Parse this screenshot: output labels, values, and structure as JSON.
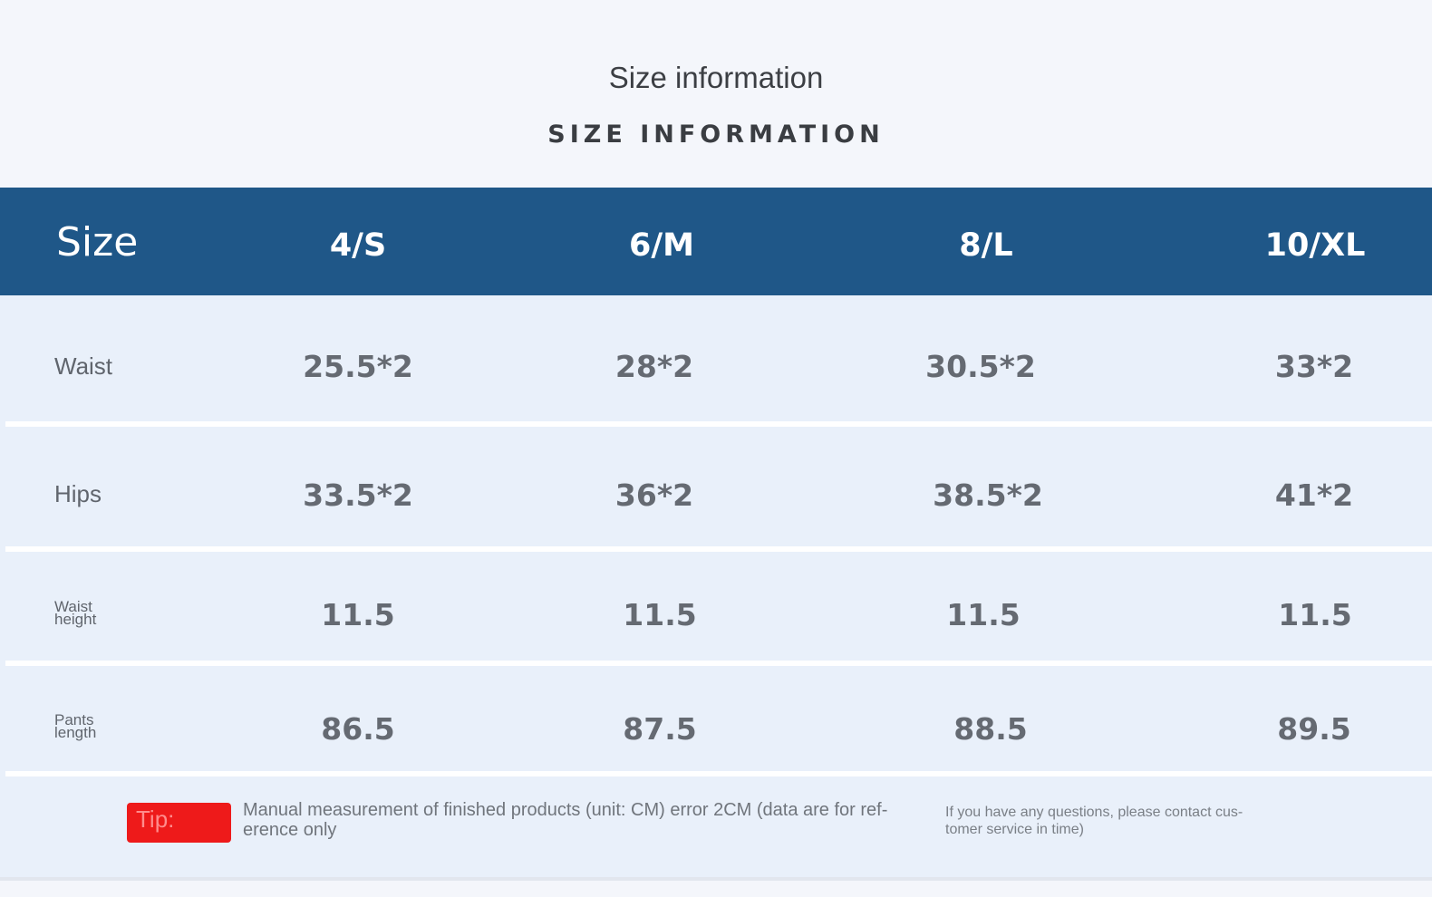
{
  "title": "Size information",
  "subtitle": "SIZE INFORMATION",
  "table": {
    "header_label": "Size",
    "sizes": [
      "4/S",
      "6/M",
      "8/L",
      "10/XL"
    ],
    "rows": [
      {
        "label": "Waist",
        "values": [
          "25.5*2",
          "28*2",
          "30.5*2",
          "33*2"
        ]
      },
      {
        "label": "Hips",
        "values": [
          "33.5*2",
          "36*2",
          "38.5*2",
          "41*2"
        ]
      },
      {
        "label": "Waist height",
        "values": [
          "11.5",
          "11.5",
          "11.5",
          "11.5"
        ]
      },
      {
        "label": "Pants length",
        "values": [
          "86.5",
          "87.5",
          "88.5",
          "89.5"
        ]
      }
    ]
  },
  "tip": {
    "label": "Tip:",
    "note": "Manual measurement of finished products (unit: CM) error 2CM (data are for ref-erence only",
    "contact": "If you have any questions, please contact cus-tomer service in time)"
  },
  "colors": {
    "header_bg": "#1f5788",
    "row_bg": "#e9f0fa",
    "tip_badge": "#ee1a1a"
  }
}
